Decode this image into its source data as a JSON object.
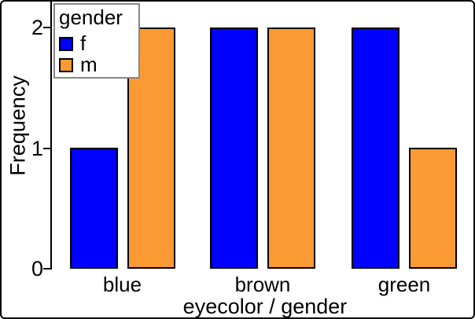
{
  "chart_data": {
    "type": "bar",
    "title": "",
    "xlabel": "eyecolor / gender",
    "ylabel": "Frequency",
    "categories": [
      "blue",
      "brown",
      "green"
    ],
    "series": [
      {
        "name": "f",
        "color": "#0000ff",
        "values": [
          1,
          2,
          2
        ]
      },
      {
        "name": "m",
        "color": "#fb9a33",
        "values": [
          2,
          2,
          1
        ]
      }
    ],
    "ylim": [
      0,
      2
    ],
    "yticks": [
      0,
      1,
      2
    ],
    "legend": {
      "title": "gender",
      "position": "top-left"
    },
    "grid": false,
    "bar_outline_color": "#000000",
    "axis_color": "#000000"
  }
}
